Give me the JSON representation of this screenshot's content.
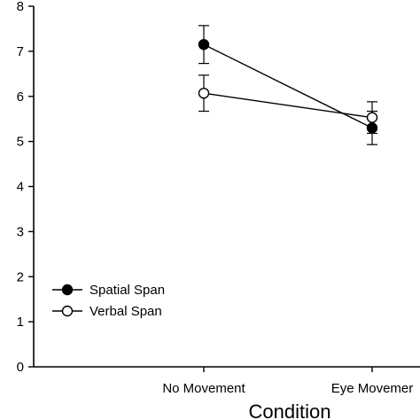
{
  "chart_data": {
    "type": "line",
    "title": "",
    "xlabel": "Condition",
    "ylabel": "",
    "categories": [
      "No Movement",
      "Eye Movemer"
    ],
    "ylim": [
      0,
      8
    ],
    "yticks": [
      "0",
      "1",
      "2",
      "3",
      "4",
      "5",
      "6",
      "7",
      "8"
    ],
    "grid": false,
    "legend_position": "lower-left",
    "series": [
      {
        "name": "Spatial Span",
        "marker": "filled-circle",
        "color": "#000000",
        "values": [
          7.15,
          5.3
        ],
        "error": [
          0.42,
          0.37
        ]
      },
      {
        "name": "Verbal Span",
        "marker": "open-circle",
        "color": "#000000",
        "values": [
          6.07,
          5.53
        ],
        "error": [
          0.4,
          0.35
        ]
      }
    ]
  }
}
